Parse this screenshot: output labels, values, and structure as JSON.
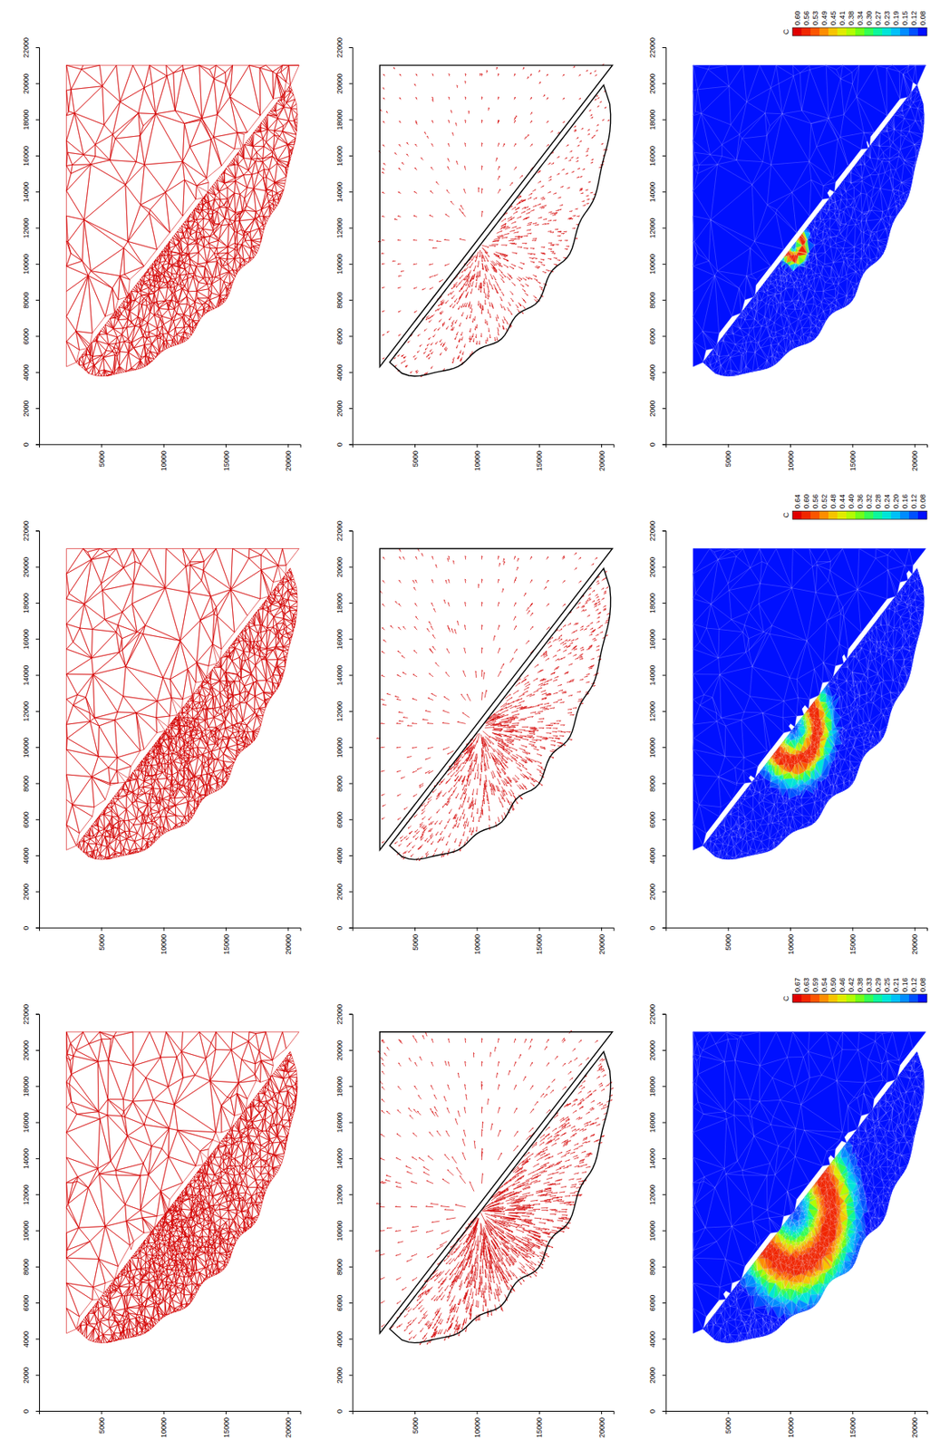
{
  "chart_data": [
    {
      "type": "mesh",
      "xlim": [
        0,
        21000
      ],
      "ylim": [
        0,
        22000
      ],
      "xticks": [
        5000,
        10000,
        15000,
        20000
      ],
      "yticks": [
        0,
        2000,
        4000,
        6000,
        8000,
        10000,
        12000,
        14000,
        16000,
        18000,
        20000,
        22000
      ]
    },
    {
      "type": "vector",
      "xlim": [
        0,
        21000
      ],
      "ylim": [
        0,
        22000
      ],
      "xticks": [
        5000,
        10000,
        15000,
        20000
      ],
      "yticks": [
        0,
        2000,
        4000,
        6000,
        8000,
        10000,
        12000,
        14000,
        16000,
        18000,
        20000,
        22000
      ]
    },
    {
      "type": "contour",
      "xlim": [
        0,
        21000
      ],
      "ylim": [
        0,
        22000
      ],
      "xticks": [
        5000,
        10000,
        15000,
        20000
      ],
      "yticks": [
        0,
        2000,
        4000,
        6000,
        8000,
        10000,
        12000,
        14000,
        16000,
        18000,
        20000,
        22000
      ],
      "colorbar": {
        "title": "C",
        "ticks": [
          {
            "value": 0.6,
            "label": "0.60"
          },
          {
            "value": 0.56,
            "label": "0.56"
          },
          {
            "value": 0.53,
            "label": "0.53"
          },
          {
            "value": 0.49,
            "label": "0.49"
          },
          {
            "value": 0.45,
            "label": "0.45"
          },
          {
            "value": 0.41,
            "label": "0.41"
          },
          {
            "value": 0.38,
            "label": "0.38"
          },
          {
            "value": 0.34,
            "label": "0.34"
          },
          {
            "value": 0.3,
            "label": "0.30"
          },
          {
            "value": 0.27,
            "label": "0.27"
          },
          {
            "value": 0.23,
            "label": "0.23"
          },
          {
            "value": 0.19,
            "label": "0.19"
          },
          {
            "value": 0.15,
            "label": "0.15"
          },
          {
            "value": 0.12,
            "label": "0.12"
          },
          {
            "value": 0.08,
            "label": "0.08"
          }
        ]
      }
    },
    {
      "type": "mesh",
      "xlim": [
        0,
        21000
      ],
      "ylim": [
        0,
        22000
      ],
      "xticks": [
        5000,
        10000,
        15000,
        20000
      ],
      "yticks": [
        0,
        2000,
        4000,
        6000,
        8000,
        10000,
        12000,
        14000,
        16000,
        18000,
        20000,
        22000
      ]
    },
    {
      "type": "vector",
      "xlim": [
        0,
        21000
      ],
      "ylim": [
        0,
        22000
      ],
      "xticks": [
        5000,
        10000,
        15000,
        20000
      ],
      "yticks": [
        0,
        2000,
        4000,
        6000,
        8000,
        10000,
        12000,
        14000,
        16000,
        18000,
        20000,
        22000
      ]
    },
    {
      "type": "contour",
      "xlim": [
        0,
        21000
      ],
      "ylim": [
        0,
        22000
      ],
      "xticks": [
        5000,
        10000,
        15000,
        20000
      ],
      "yticks": [
        0,
        2000,
        4000,
        6000,
        8000,
        10000,
        12000,
        14000,
        16000,
        18000,
        20000,
        22000
      ],
      "colorbar": {
        "title": "C",
        "ticks": [
          {
            "value": 0.64,
            "label": "0.64"
          },
          {
            "value": 0.6,
            "label": "0.60"
          },
          {
            "value": 0.56,
            "label": "0.56"
          },
          {
            "value": 0.52,
            "label": "0.52"
          },
          {
            "value": 0.48,
            "label": "0.48"
          },
          {
            "value": 0.44,
            "label": "0.44"
          },
          {
            "value": 0.4,
            "label": "0.40"
          },
          {
            "value": 0.36,
            "label": "0.36"
          },
          {
            "value": 0.32,
            "label": "0.32"
          },
          {
            "value": 0.28,
            "label": "0.28"
          },
          {
            "value": 0.24,
            "label": "0.24"
          },
          {
            "value": 0.2,
            "label": "0.20"
          },
          {
            "value": 0.16,
            "label": "0.16"
          },
          {
            "value": 0.12,
            "label": "0.12"
          },
          {
            "value": 0.08,
            "label": "0.08"
          }
        ]
      }
    },
    {
      "type": "mesh",
      "xlim": [
        0,
        21000
      ],
      "ylim": [
        0,
        22000
      ],
      "xticks": [
        5000,
        10000,
        15000,
        20000
      ],
      "yticks": [
        0,
        2000,
        4000,
        6000,
        8000,
        10000,
        12000,
        14000,
        16000,
        18000,
        20000,
        22000
      ]
    },
    {
      "type": "vector",
      "xlim": [
        0,
        21000
      ],
      "ylim": [
        0,
        22000
      ],
      "xticks": [
        5000,
        10000,
        15000,
        20000
      ],
      "yticks": [
        0,
        2000,
        4000,
        6000,
        8000,
        10000,
        12000,
        14000,
        16000,
        18000,
        20000,
        22000
      ]
    },
    {
      "type": "contour",
      "xlim": [
        0,
        21000
      ],
      "ylim": [
        0,
        22000
      ],
      "xticks": [
        5000,
        10000,
        15000,
        20000
      ],
      "yticks": [
        0,
        2000,
        4000,
        6000,
        8000,
        10000,
        12000,
        14000,
        16000,
        18000,
        20000,
        22000
      ],
      "colorbar": {
        "title": "C",
        "ticks": [
          {
            "value": 0.67,
            "label": "0.67"
          },
          {
            "value": 0.63,
            "label": "0.63"
          },
          {
            "value": 0.59,
            "label": "0.59"
          },
          {
            "value": 0.54,
            "label": "0.54"
          },
          {
            "value": 0.5,
            "label": "0.50"
          },
          {
            "value": 0.46,
            "label": "0.46"
          },
          {
            "value": 0.42,
            "label": "0.42"
          },
          {
            "value": 0.38,
            "label": "0.38"
          },
          {
            "value": 0.33,
            "label": "0.33"
          },
          {
            "value": 0.29,
            "label": "0.29"
          },
          {
            "value": 0.25,
            "label": "0.25"
          },
          {
            "value": 0.21,
            "label": "0.21"
          },
          {
            "value": 0.16,
            "label": "0.16"
          },
          {
            "value": 0.12,
            "label": "0.12"
          },
          {
            "value": 0.08,
            "label": "0.08"
          }
        ]
      }
    }
  ]
}
